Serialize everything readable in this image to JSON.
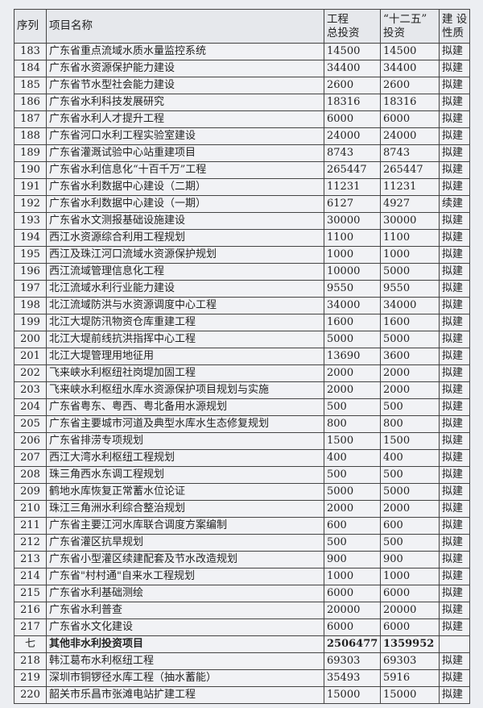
{
  "header": {
    "seq": "序列",
    "name": "项目名称",
    "total_line1": "工程",
    "total_line2": "总投资",
    "plan_line1": "“十二五”",
    "plan_line2": "投资",
    "type_line1": "建 设",
    "type_line2": "性质"
  },
  "rows": [
    {
      "seq": "183",
      "name": "广东省重点流域水质水量监控系统",
      "total": "14500",
      "plan": "14500",
      "type": "拟建"
    },
    {
      "seq": "184",
      "name": "广东省水资源保护能力建设",
      "total": "34400",
      "plan": "34400",
      "type": "拟建"
    },
    {
      "seq": "185",
      "name": "广东省节水型社会能力建设",
      "total": "2600",
      "plan": "2600",
      "type": "拟建"
    },
    {
      "seq": "186",
      "name": "广东省水利科技发展研究",
      "total": "18316",
      "plan": "18316",
      "type": "拟建"
    },
    {
      "seq": "187",
      "name": "广东省水利人才提升工程",
      "total": "6000",
      "plan": "6000",
      "type": "拟建"
    },
    {
      "seq": "188",
      "name": "广东省河口水利工程实验室建设",
      "total": "24000",
      "plan": "24000",
      "type": "拟建"
    },
    {
      "seq": "189",
      "name": "广东省灌溉试验中心站重建项目",
      "total": "8743",
      "plan": "8743",
      "type": "拟建"
    },
    {
      "seq": "190",
      "name": "广东省水利信息化“十百千万”工程",
      "total": "265447",
      "plan": "265447",
      "type": "拟建"
    },
    {
      "seq": "191",
      "name": "广东省水利数据中心建设（二期）",
      "total": "11231",
      "plan": "11231",
      "type": "拟建"
    },
    {
      "seq": "192",
      "name": "广东省水利数据中心建设（一期）",
      "total": "6127",
      "plan": "4927",
      "type": "续建"
    },
    {
      "seq": "193",
      "name": "广东省水文测报基础设施建设",
      "total": "30000",
      "plan": "30000",
      "type": "拟建"
    },
    {
      "seq": "194",
      "name": "西江水资源综合利用工程规划",
      "total": "1100",
      "plan": "1100",
      "type": "拟建"
    },
    {
      "seq": "195",
      "name": "西江及珠江河口流域水资源保护规划",
      "total": "1000",
      "plan": "1000",
      "type": "拟建"
    },
    {
      "seq": "196",
      "name": "西江流域管理信息化工程",
      "total": "10000",
      "plan": "5000",
      "type": "拟建"
    },
    {
      "seq": "197",
      "name": "北江流域水利行业能力建设",
      "total": "9550",
      "plan": "9550",
      "type": "拟建"
    },
    {
      "seq": "198",
      "name": "北江流域防洪与水资源调度中心工程",
      "total": "34000",
      "plan": "34000",
      "type": "拟建"
    },
    {
      "seq": "199",
      "name": "北江大堤防汛物资仓库重建工程",
      "total": "1600",
      "plan": "1600",
      "type": "拟建"
    },
    {
      "seq": "200",
      "name": "北江大堤前线抗洪指挥中心工程",
      "total": "5000",
      "plan": "5000",
      "type": "拟建"
    },
    {
      "seq": "201",
      "name": "北江大堤管理用地征用",
      "total": "13690",
      "plan": "3600",
      "type": "拟建"
    },
    {
      "seq": "202",
      "name": "飞来峡水利枢纽社岗堤加固工程",
      "total": "2000",
      "plan": "2000",
      "type": "拟建"
    },
    {
      "seq": "203",
      "name": "飞来峡水利枢纽水库水资源保护项目规划与实施",
      "total": "2000",
      "plan": "2000",
      "type": "拟建"
    },
    {
      "seq": "204",
      "name": "广东省粤东、粤西、粤北备用水源规划",
      "total": "500",
      "plan": "500",
      "type": "拟建"
    },
    {
      "seq": "205",
      "name": "广东省主要城市河道及典型水库水生态修复规划",
      "total": "800",
      "plan": "800",
      "type": "拟建"
    },
    {
      "seq": "206",
      "name": "广东省排涝专项规划",
      "total": "1500",
      "plan": "1500",
      "type": "拟建"
    },
    {
      "seq": "207",
      "name": "西江大湾水利枢纽工程规划",
      "total": "400",
      "plan": "400",
      "type": "拟建"
    },
    {
      "seq": "208",
      "name": "珠三角西水东调工程规划",
      "total": "500",
      "plan": "500",
      "type": "拟建"
    },
    {
      "seq": "209",
      "name": "鹤地水库恢复正常蓄水位论证",
      "total": "5000",
      "plan": "5000",
      "type": "拟建"
    },
    {
      "seq": "210",
      "name": "珠江三角洲水利综合整治规划",
      "total": "2000",
      "plan": "2000",
      "type": "拟建"
    },
    {
      "seq": "211",
      "name": "广东省主要江河水库联合调度方案编制",
      "total": "600",
      "plan": "600",
      "type": "拟建"
    },
    {
      "seq": "212",
      "name": "广东省灌区抗旱规划",
      "total": "500",
      "plan": "500",
      "type": "拟建"
    },
    {
      "seq": "213",
      "name": "广东省小型灌区续建配套及节水改造规划",
      "total": "900",
      "plan": "900",
      "type": "拟建"
    },
    {
      "seq": "214",
      "name": "广东省\"村村通\"自来水工程规划",
      "total": "1000",
      "plan": "1000",
      "type": "拟建"
    },
    {
      "seq": "215",
      "name": "广东省水利基础测绘",
      "total": "6000",
      "plan": "6000",
      "type": "拟建"
    },
    {
      "seq": "216",
      "name": "广东省水利普查",
      "total": "20000",
      "plan": "20000",
      "type": "拟建"
    },
    {
      "seq": "217",
      "name": "广东省水文化建设",
      "total": "6000",
      "plan": "6000",
      "type": "拟建"
    },
    {
      "seq": "七",
      "name": "其他非水利投资项目",
      "total": "2506477",
      "plan": "1359952",
      "type": "",
      "section": true
    },
    {
      "seq": "218",
      "name": "韩江葛布水利枢纽工程",
      "total": "69303",
      "plan": "69303",
      "type": "拟建"
    },
    {
      "seq": "219",
      "name": "深圳市铜锣径水库工程（抽水蓄能）",
      "total": "35493",
      "plan": "5916",
      "type": "拟建"
    },
    {
      "seq": "220",
      "name": "韶关市乐昌市张滩电站扩建工程",
      "total": "15000",
      "plan": "15000",
      "type": "拟建"
    }
  ]
}
